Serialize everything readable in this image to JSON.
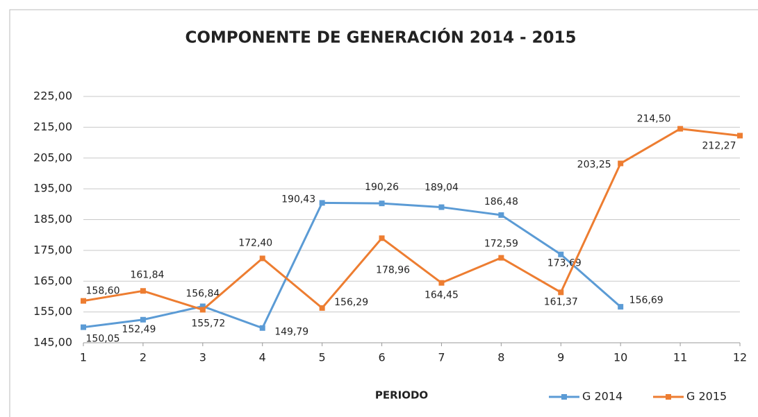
{
  "chart_data": {
    "type": "line",
    "title": "COMPONENTE  DE  GENERACIÓN   2014 - 2015",
    "x_label": "PERIODO",
    "x": [
      1,
      2,
      3,
      4,
      5,
      6,
      7,
      8,
      9,
      10,
      11,
      12
    ],
    "xlim": [
      1,
      12
    ],
    "xticks": [
      1,
      2,
      3,
      4,
      5,
      6,
      7,
      8,
      9,
      10,
      11,
      12
    ],
    "ylim": [
      145,
      225
    ],
    "yticks": [
      {
        "value": 145,
        "label": "145,00"
      },
      {
        "value": 155,
        "label": "155,00"
      },
      {
        "value": 165,
        "label": "165,00"
      },
      {
        "value": 175,
        "label": "175,00"
      },
      {
        "value": 185,
        "label": "185,00"
      },
      {
        "value": 195,
        "label": "195,00"
      },
      {
        "value": 205,
        "label": "205,00"
      },
      {
        "value": 215,
        "label": "215,00"
      },
      {
        "value": 225,
        "label": "225,00"
      }
    ],
    "grid": true,
    "legend": "bottom-right",
    "series": [
      {
        "name": "G  2014",
        "color": "#5b9bd5",
        "values": [
          150.05,
          152.49,
          156.84,
          149.79,
          190.43,
          190.26,
          189.04,
          186.48,
          173.69,
          156.69,
          null,
          null
        ],
        "value_labels": [
          "150,05",
          "152,49",
          "156,84",
          "149,79",
          "190,43",
          "190,26",
          "189,04",
          "186,48",
          "173,69",
          "156,69",
          null,
          null
        ]
      },
      {
        "name": "G  2015",
        "color": "#ed7d31",
        "values": [
          158.6,
          161.84,
          155.72,
          172.4,
          156.29,
          178.96,
          164.45,
          172.59,
          161.37,
          203.25,
          214.5,
          212.27
        ],
        "value_labels": [
          "158,60",
          "161,84",
          "155,72",
          "172,40",
          "156,29",
          "178,96",
          "164,45",
          "172,59",
          "161,37",
          "203,25",
          "214,50",
          "212,27"
        ]
      }
    ]
  }
}
